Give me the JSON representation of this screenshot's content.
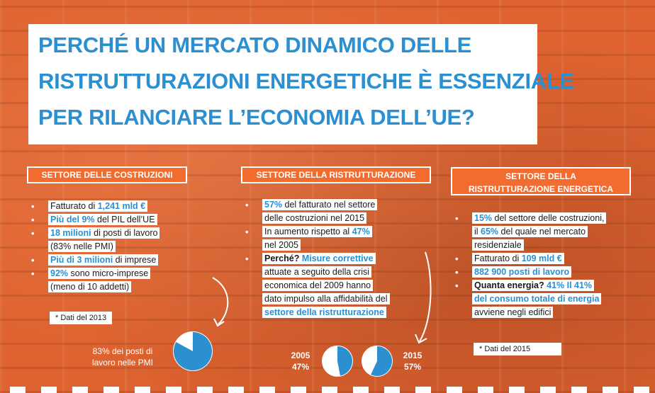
{
  "title": {
    "line1": "PERCHÉ UN MERCATO DINAMICO DELLE",
    "line2": "RISTRUTTURAZIONI ENERGETICHE È ESSENZIALE",
    "line3": "PER RILANCIARE L’ECONOMIA DELL’UE?"
  },
  "col1": {
    "heading": "SETTORE DELLE COSTRUZIONI",
    "items": [
      {
        "pre": "Fatturato di ",
        "strong": "1,241 mld €",
        "post": ""
      },
      {
        "pre": "",
        "strong": "Più del 9%",
        "post": " del PIL dell’UE"
      },
      {
        "pre": "",
        "strong": "18 milioni",
        "post": " di posti di lavoro"
      },
      {
        "pre": "(83% nelle PMI)",
        "strong": "",
        "post": ""
      },
      {
        "pre": "",
        "strong": "Più di 3 milioni",
        "post": " di imprese"
      },
      {
        "pre": "",
        "strong": "92%",
        "post": " sono micro-imprese"
      },
      {
        "pre": "(meno di 10 addetti)",
        "strong": "",
        "post": ""
      }
    ],
    "note": "* Dati del 2013",
    "pie_label_1": "83% dei posti di",
    "pie_label_2": "lavoro nelle PMI",
    "pie_value": 0.83
  },
  "col2": {
    "heading": "SETTORE DELLA RISTRUTTURAZIONE",
    "item1_strong": "57%",
    "item1_rest": " del fatturato nel settore",
    "item1_line2": "delle costruzioni nel 2015",
    "item2_pre": "In aumento rispetto al ",
    "item2_strong": "47%",
    "item2_line2": "nel 2005",
    "item3_bold": "Perché? ",
    "item3_strong": "Misure correttive",
    "item3_line2": "attuate a seguito della crisi",
    "item3_line3": "economica del 2009 hanno",
    "item3_line4": "dato impulso alla affidabilità del",
    "item3_line5": "settore della ristrutturazione",
    "pie_left_year": "2005",
    "pie_left_value_label": "47%",
    "pie_left_value": 0.47,
    "pie_right_year": "2015",
    "pie_right_value_label": "57%",
    "pie_right_value": 0.57
  },
  "col3": {
    "heading_line1": "SETTORE DELLA",
    "heading_line2": "RISTRUTTURAZIONE ENERGETICA",
    "item1_strong": "15%",
    "item1_rest": " del settore delle costruzioni,",
    "item1_line2_pre": "il ",
    "item1_line2_strong": "65%",
    "item1_line2_rest": " del quale nel mercato",
    "item1_line3": "residenziale",
    "item2_pre": "Fatturato di ",
    "item2_strong": "109 mld €",
    "item3_strong": "882 900 posti di lavoro",
    "item4_bold": "Quanta energia? ",
    "item4_strong": "41% Il 41%",
    "item4_line2": "del consumo totale di energia",
    "item4_line3": "avviene negli edifici",
    "note": "* Dati del 2015"
  },
  "colors": {
    "orange": "#f26c30",
    "blue": "#2b8fd0",
    "white": "#ffffff"
  }
}
